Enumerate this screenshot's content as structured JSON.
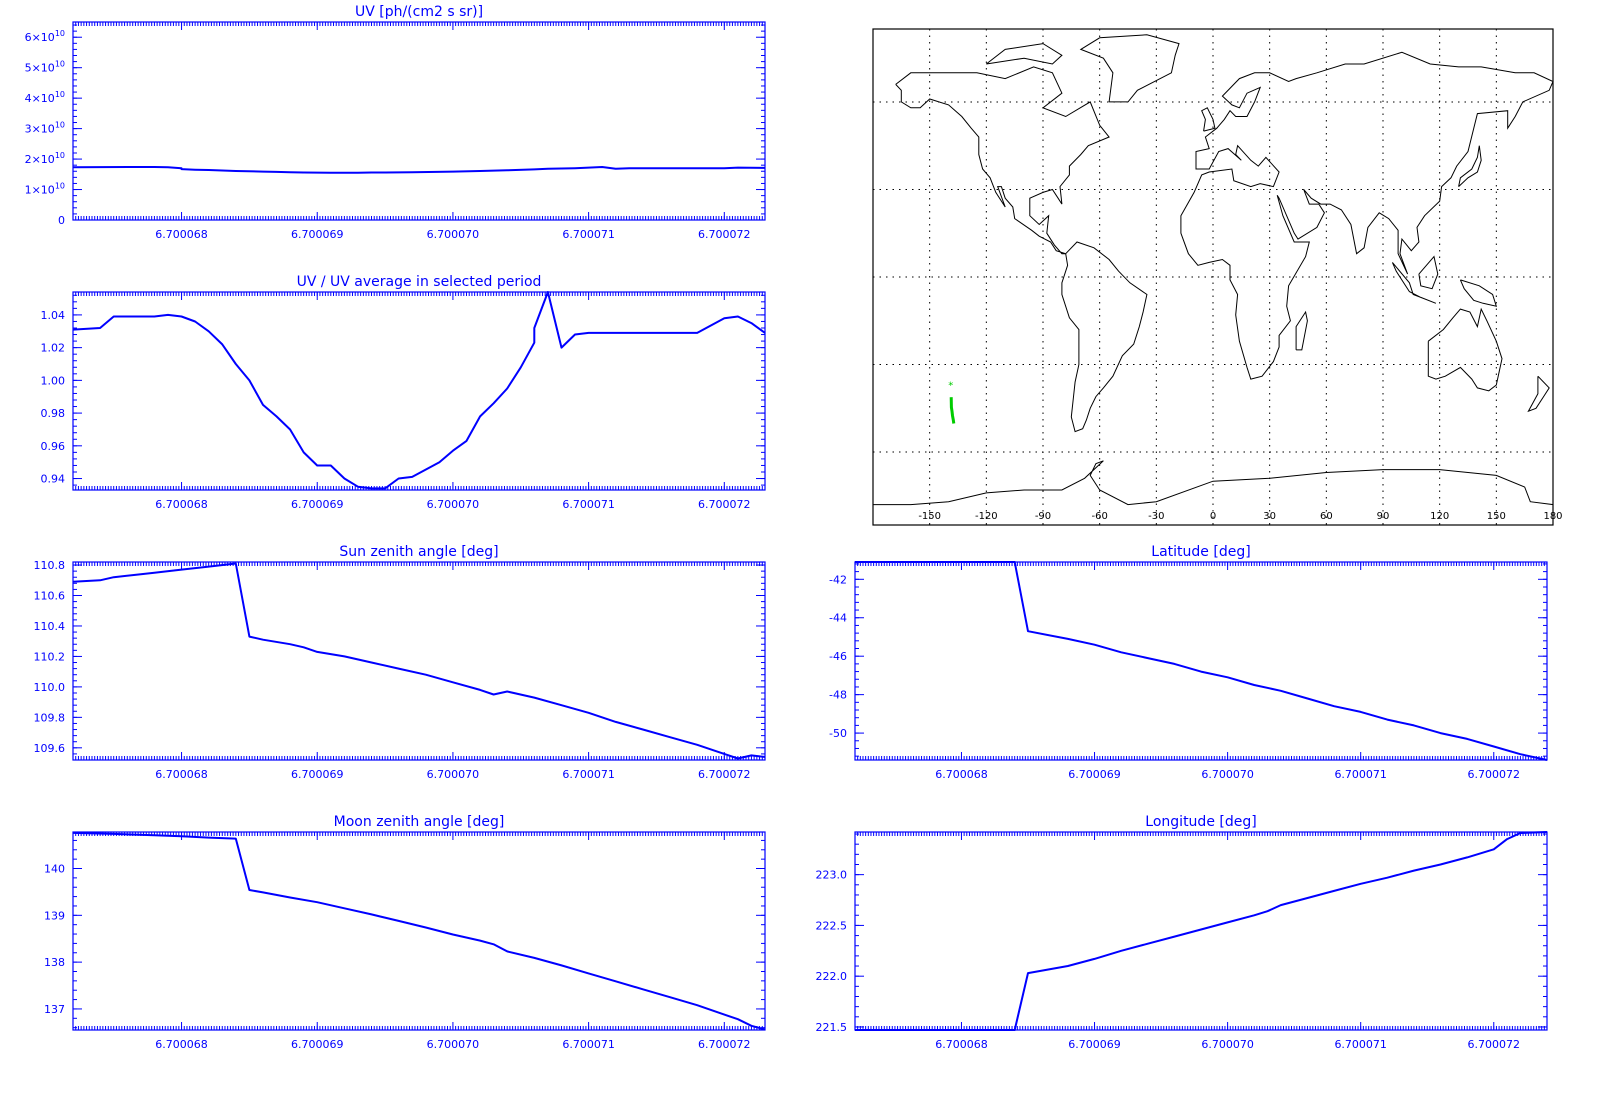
{
  "colors": {
    "axis": "#0000ff",
    "series": "#0000ff",
    "track": "#00cc00",
    "map_frame": "#000000"
  },
  "x_tick_labels": [
    "6.700068",
    "6.700069",
    "6.700070",
    "6.700071",
    "6.700072"
  ],
  "chart_data": [
    {
      "id": "uv",
      "type": "line",
      "title": "UV [ph/(cm2 s sr)]",
      "xlim": [
        6.7000672,
        6.7000723
      ],
      "ylim": [
        0,
        65000000000.0
      ],
      "y_ticks": [
        0,
        10000000000.0,
        20000000000.0,
        30000000000.0,
        40000000000.0,
        50000000000.0,
        60000000000.0
      ],
      "y_tick_labels": [
        {
          "m": "0",
          "e": ""
        },
        {
          "m": "1×10",
          "e": "10"
        },
        {
          "m": "2×10",
          "e": "10"
        },
        {
          "m": "3×10",
          "e": "10"
        },
        {
          "m": "4×10",
          "e": "10"
        },
        {
          "m": "5×10",
          "e": "10"
        },
        {
          "m": "6×10",
          "e": "10"
        }
      ],
      "x": [
        6.7000672,
        6.7000677,
        6.7000678,
        6.7000679,
        6.700068,
        6.700068,
        6.7000681,
        6.7000682,
        6.7000684,
        6.7000686,
        6.7000687,
        6.7000688,
        6.7000689,
        6.7000691,
        6.7000693,
        6.7000694,
        6.7000695,
        6.7000697,
        6.70007,
        6.7000702,
        6.7000704,
        6.7000706,
        6.7000707,
        6.7000709,
        6.700071,
        6.7000711,
        6.7000712,
        6.7000713,
        6.7000716,
        6.7000717,
        6.700072,
        6.7000721,
        6.7000723
      ],
      "y": [
        17300000000.0,
        17400000000.0,
        17400000000.0,
        17300000000.0,
        17000000000.0,
        16700000000.0,
        16500000000.0,
        16400000000.0,
        16100000000.0,
        15900000000.0,
        15800000000.0,
        15700000000.0,
        15600000000.0,
        15500000000.0,
        15500000000.0,
        15600000000.0,
        15600000000.0,
        15700000000.0,
        15900000000.0,
        16100000000.0,
        16300000000.0,
        16600000000.0,
        16800000000.0,
        17000000000.0,
        17200000000.0,
        17400000000.0,
        16800000000.0,
        17000000000.0,
        17000000000.0,
        17000000000.0,
        17000000000.0,
        17200000000.0,
        17100000000.0
      ]
    },
    {
      "id": "uv_ratio",
      "type": "line",
      "title": "UV / UV average in selected period",
      "xlim": [
        6.7000672,
        6.7000723
      ],
      "ylim": [
        0.933,
        1.054
      ],
      "y_ticks": [
        0.94,
        0.96,
        0.98,
        1.0,
        1.02,
        1.04
      ],
      "y_tick_labels": [
        "0.94",
        "0.96",
        "0.98",
        "1.00",
        "1.02",
        "1.04"
      ],
      "x": [
        6.7000672,
        6.7000674,
        6.7000675,
        6.7000678,
        6.7000679,
        6.700068,
        6.7000681,
        6.7000682,
        6.7000683,
        6.7000684,
        6.7000685,
        6.7000686,
        6.7000687,
        6.7000688,
        6.7000689,
        6.700069,
        6.7000691,
        6.7000692,
        6.7000693,
        6.7000694,
        6.7000695,
        6.7000696,
        6.7000697,
        6.7000699,
        6.70007,
        6.7000701,
        6.7000702,
        6.7000703,
        6.7000704,
        6.7000705,
        6.7000706,
        6.7000706,
        6.7000707,
        6.7000708,
        6.7000709,
        6.700071,
        6.700071,
        6.7000711,
        6.7000712,
        6.7000713,
        6.7000716,
        6.7000717,
        6.7000718,
        6.700072,
        6.7000721,
        6.7000722,
        6.7000723
      ],
      "y": [
        1.031,
        1.032,
        1.039,
        1.039,
        1.04,
        1.039,
        1.036,
        1.03,
        1.022,
        1.01,
        1.0,
        0.985,
        0.978,
        0.97,
        0.956,
        0.948,
        0.948,
        0.94,
        0.935,
        0.934,
        0.934,
        0.94,
        0.941,
        0.95,
        0.957,
        0.963,
        0.978,
        0.986,
        0.995,
        1.008,
        1.023,
        1.032,
        1.054,
        1.02,
        1.028,
        1.029,
        1.029,
        1.029,
        1.029,
        1.029,
        1.029,
        1.029,
        1.029,
        1.038,
        1.039,
        1.035,
        1.029
      ]
    },
    {
      "id": "sun_zenith",
      "type": "line",
      "title": "Sun zenith angle [deg]",
      "xlim": [
        6.7000672,
        6.7000723
      ],
      "ylim": [
        109.52,
        110.82
      ],
      "y_ticks": [
        109.6,
        109.8,
        110.0,
        110.2,
        110.4,
        110.6,
        110.8
      ],
      "y_tick_labels": [
        "109.6",
        "109.8",
        "110.0",
        "110.2",
        "110.4",
        "110.6",
        "110.8"
      ],
      "x": [
        6.7000672,
        6.7000674,
        6.7000675,
        6.7000677,
        6.7000678,
        6.700068,
        6.7000681,
        6.7000682,
        6.7000684,
        6.7000685,
        6.7000686,
        6.7000688,
        6.7000689,
        6.700069,
        6.7000692,
        6.7000694,
        6.7000696,
        6.7000698,
        6.70007,
        6.7000702,
        6.7000703,
        6.7000704,
        6.7000706,
        6.7000708,
        6.700071,
        6.7000712,
        6.7000714,
        6.7000716,
        6.7000718,
        6.700072,
        6.7000721,
        6.7000722,
        6.7000723
      ],
      "y": [
        110.69,
        110.7,
        110.72,
        110.74,
        110.75,
        110.77,
        110.78,
        110.79,
        110.81,
        110.33,
        110.31,
        110.28,
        110.26,
        110.23,
        110.2,
        110.16,
        110.12,
        110.08,
        110.03,
        109.98,
        109.95,
        109.97,
        109.93,
        109.88,
        109.83,
        109.77,
        109.72,
        109.67,
        109.62,
        109.56,
        109.53,
        109.55,
        109.54
      ]
    },
    {
      "id": "moon_zenith",
      "type": "line",
      "title": "Moon zenith angle [deg]",
      "xlim": [
        6.7000672,
        6.7000723
      ],
      "ylim": [
        136.55,
        140.78
      ],
      "y_ticks": [
        137,
        138,
        139,
        140
      ],
      "y_tick_labels": [
        "137",
        "138",
        "139",
        "140"
      ],
      "x": [
        6.7000672,
        6.7000675,
        6.7000678,
        6.700068,
        6.7000682,
        6.7000684,
        6.7000685,
        6.7000686,
        6.7000688,
        6.700069,
        6.7000692,
        6.7000694,
        6.7000696,
        6.7000698,
        6.70007,
        6.7000702,
        6.7000703,
        6.7000704,
        6.7000706,
        6.7000708,
        6.700071,
        6.7000712,
        6.7000714,
        6.7000716,
        6.7000718,
        6.700072,
        6.7000721,
        6.7000722,
        6.7000723
      ],
      "y": [
        140.76,
        140.74,
        140.71,
        140.69,
        140.66,
        140.64,
        139.54,
        139.49,
        139.38,
        139.28,
        139.15,
        139.02,
        138.88,
        138.74,
        138.59,
        138.46,
        138.38,
        138.23,
        138.09,
        137.93,
        137.76,
        137.59,
        137.42,
        137.25,
        137.08,
        136.88,
        136.78,
        136.64,
        136.56
      ]
    },
    {
      "id": "latitude",
      "type": "line",
      "title": "Latitude [deg]",
      "xlim": [
        6.7000672,
        6.7000724
      ],
      "ylim": [
        -51.4,
        -41.1
      ],
      "y_ticks": [
        -50,
        -48,
        -46,
        -44,
        -42
      ],
      "y_tick_labels": [
        "-50",
        "-48",
        "-46",
        "-44",
        "-42"
      ],
      "x": [
        6.7000672,
        6.7000684,
        6.7000685,
        6.7000688,
        6.700069,
        6.7000692,
        6.7000694,
        6.7000696,
        6.7000698,
        6.70007,
        6.7000702,
        6.7000704,
        6.7000706,
        6.7000708,
        6.700071,
        6.7000712,
        6.7000714,
        6.7000716,
        6.7000718,
        6.700072,
        6.7000722,
        6.7000724
      ],
      "y": [
        -41.1,
        -41.1,
        -44.7,
        -45.1,
        -45.4,
        -45.8,
        -46.1,
        -46.4,
        -46.8,
        -47.1,
        -47.5,
        -47.8,
        -48.2,
        -48.6,
        -48.9,
        -49.3,
        -49.6,
        -50.0,
        -50.3,
        -50.7,
        -51.1,
        -51.4
      ]
    },
    {
      "id": "longitude",
      "type": "line",
      "title": "Longitude [deg]",
      "xlim": [
        6.7000672,
        6.7000724
      ],
      "ylim": [
        221.47,
        223.42
      ],
      "y_ticks": [
        221.5,
        222.0,
        222.5,
        223.0
      ],
      "y_tick_labels": [
        "221.5",
        "222.0",
        "222.5",
        "223.0"
      ],
      "x": [
        6.7000672,
        6.7000684,
        6.7000685,
        6.7000688,
        6.700069,
        6.7000692,
        6.7000694,
        6.7000696,
        6.7000698,
        6.70007,
        6.7000702,
        6.7000703,
        6.7000704,
        6.7000706,
        6.7000708,
        6.700071,
        6.7000712,
        6.7000714,
        6.7000716,
        6.7000718,
        6.700072,
        6.7000721,
        6.7000722,
        6.7000724
      ],
      "y": [
        221.47,
        221.47,
        222.03,
        222.1,
        222.17,
        222.25,
        222.32,
        222.39,
        222.46,
        222.53,
        222.6,
        222.64,
        222.7,
        222.77,
        222.84,
        222.91,
        222.97,
        223.04,
        223.1,
        223.17,
        223.25,
        223.35,
        223.41,
        223.42
      ]
    }
  ],
  "map": {
    "lon_tick_labels": [
      "-150",
      "-120",
      "-90",
      "-60",
      "-30",
      "0",
      "30",
      "60",
      "90",
      "120",
      "150",
      "180"
    ],
    "track_label": "*"
  }
}
